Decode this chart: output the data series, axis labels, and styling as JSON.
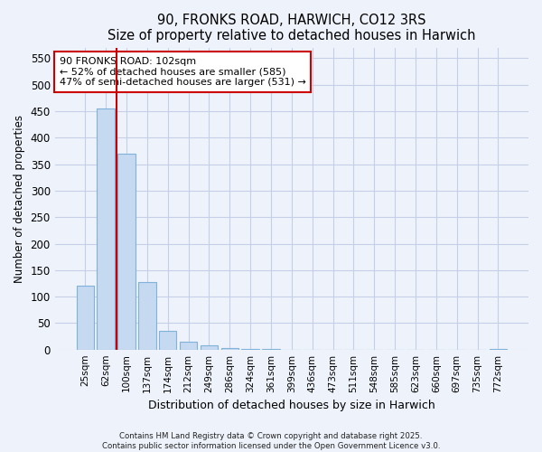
{
  "title": "90, FRONKS ROAD, HARWICH, CO12 3RS",
  "subtitle": "Size of property relative to detached houses in Harwich",
  "xlabel": "Distribution of detached houses by size in Harwich",
  "ylabel": "Number of detached properties",
  "categories": [
    "25sqm",
    "62sqm",
    "100sqm",
    "137sqm",
    "174sqm",
    "212sqm",
    "249sqm",
    "286sqm",
    "324sqm",
    "361sqm",
    "399sqm",
    "436sqm",
    "473sqm",
    "511sqm",
    "548sqm",
    "585sqm",
    "623sqm",
    "660sqm",
    "697sqm",
    "735sqm",
    "772sqm"
  ],
  "values": [
    120,
    455,
    370,
    128,
    35,
    15,
    8,
    3,
    1,
    1,
    0,
    0,
    0,
    0,
    0,
    0,
    0,
    0,
    0,
    0,
    2
  ],
  "bar_color": "#c5d9f0",
  "bar_edge_color": "#7fb3d9",
  "vline_x": 1.5,
  "vline_color": "#cc0000",
  "annotation_text": "90 FRONKS ROAD: 102sqm\n← 52% of detached houses are smaller (585)\n47% of semi-detached houses are larger (531) →",
  "annotation_box_color": "#ffffff",
  "annotation_box_edge": "#cc0000",
  "ylim": [
    0,
    570
  ],
  "yticks": [
    0,
    50,
    100,
    150,
    200,
    250,
    300,
    350,
    400,
    450,
    500,
    550
  ],
  "bg_color": "#eef2fb",
  "grid_color": "#c5d0e8",
  "footer_line1": "Contains HM Land Registry data © Crown copyright and database right 2025.",
  "footer_line2": "Contains public sector information licensed under the Open Government Licence v3.0."
}
